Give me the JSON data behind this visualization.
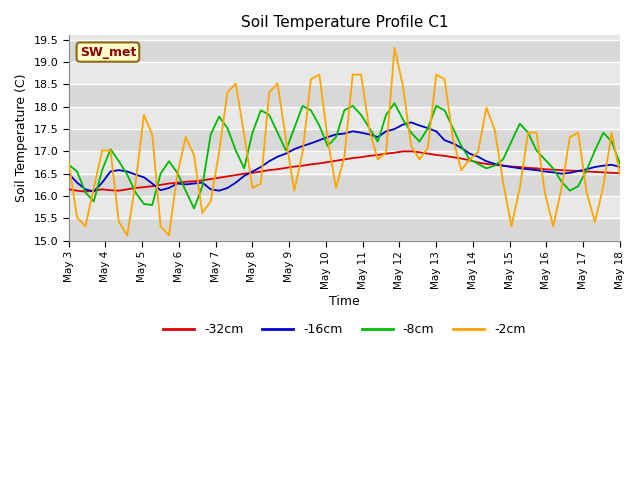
{
  "title": "Soil Temperature Profile C1",
  "xlabel": "Time",
  "ylabel": "Soil Temperature (C)",
  "ylim": [
    15.0,
    19.6
  ],
  "annotation": "SW_met",
  "annotation_color": "#8B0000",
  "annotation_bg": "#FFFFCC",
  "legend_labels": [
    "-32cm",
    "-16cm",
    "-8cm",
    "-2cm"
  ],
  "legend_colors": [
    "#DD0000",
    "#0000CC",
    "#00BB00",
    "#FFA500"
  ],
  "x_ticks": [
    "May 3",
    "May 4",
    "May 5",
    "May 6",
    "May 7",
    "May 8",
    "May 9",
    "May 10",
    "May 11",
    "May 12",
    "May 13",
    "May 14",
    "May 15",
    "May 16",
    "May 17",
    "May 18"
  ],
  "band_colors": [
    "#D8D8D8",
    "#E8E8E8"
  ],
  "grid_color": "#FFFFFF",
  "series_32cm": [
    16.15,
    16.12,
    16.1,
    16.12,
    16.15,
    16.13,
    16.12,
    16.15,
    16.18,
    16.2,
    16.22,
    16.25,
    16.28,
    16.3,
    16.32,
    16.33,
    16.35,
    16.38,
    16.41,
    16.44,
    16.47,
    16.5,
    16.52,
    16.55,
    16.58,
    16.6,
    16.63,
    16.66,
    16.68,
    16.71,
    16.73,
    16.76,
    16.79,
    16.82,
    16.85,
    16.87,
    16.9,
    16.92,
    16.95,
    16.97,
    17.0,
    17.0,
    16.98,
    16.95,
    16.92,
    16.9,
    16.87,
    16.84,
    16.8,
    16.75,
    16.72,
    16.7,
    16.68,
    16.66,
    16.65,
    16.63,
    16.62,
    16.6,
    16.59,
    16.58,
    16.57,
    16.56,
    16.55,
    16.54,
    16.53,
    16.52,
    16.51
  ],
  "series_16cm": [
    16.5,
    16.3,
    16.15,
    16.1,
    16.3,
    16.55,
    16.58,
    16.55,
    16.48,
    16.42,
    16.28,
    16.13,
    16.18,
    16.28,
    16.26,
    16.28,
    16.3,
    16.15,
    16.12,
    16.18,
    16.3,
    16.45,
    16.55,
    16.65,
    16.78,
    16.88,
    16.95,
    17.05,
    17.12,
    17.18,
    17.25,
    17.32,
    17.38,
    17.4,
    17.45,
    17.42,
    17.38,
    17.32,
    17.45,
    17.5,
    17.6,
    17.65,
    17.58,
    17.52,
    17.45,
    17.25,
    17.18,
    17.08,
    16.95,
    16.88,
    16.78,
    16.72,
    16.68,
    16.65,
    16.62,
    16.6,
    16.58,
    16.55,
    16.53,
    16.5,
    16.52,
    16.56,
    16.6,
    16.65,
    16.68,
    16.7,
    16.65
  ],
  "series_8cm": [
    16.7,
    16.55,
    16.08,
    15.88,
    16.58,
    17.05,
    16.78,
    16.48,
    16.08,
    15.82,
    15.8,
    16.5,
    16.78,
    16.52,
    16.12,
    15.72,
    16.22,
    17.38,
    17.78,
    17.52,
    17.02,
    16.62,
    17.42,
    17.92,
    17.82,
    17.42,
    17.02,
    17.52,
    18.02,
    17.92,
    17.58,
    17.12,
    17.32,
    17.92,
    18.02,
    17.82,
    17.52,
    17.22,
    17.82,
    18.08,
    17.72,
    17.42,
    17.22,
    17.52,
    18.02,
    17.92,
    17.52,
    17.12,
    16.82,
    16.72,
    16.62,
    16.68,
    16.82,
    17.22,
    17.62,
    17.42,
    17.02,
    16.82,
    16.62,
    16.32,
    16.12,
    16.22,
    16.58,
    17.02,
    17.42,
    17.22,
    16.72
  ],
  "series_2cm": [
    16.75,
    15.52,
    15.32,
    16.18,
    17.02,
    17.02,
    15.42,
    15.12,
    16.28,
    17.82,
    17.38,
    15.32,
    15.12,
    16.48,
    17.32,
    16.92,
    15.62,
    15.88,
    16.98,
    18.32,
    18.52,
    17.38,
    16.18,
    16.28,
    18.32,
    18.52,
    17.28,
    16.12,
    16.98,
    18.62,
    18.72,
    17.28,
    16.18,
    16.88,
    18.72,
    18.72,
    17.48,
    16.82,
    16.98,
    19.32,
    18.48,
    17.12,
    16.82,
    17.08,
    18.72,
    18.62,
    17.28,
    16.58,
    16.82,
    16.98,
    17.98,
    17.48,
    16.32,
    15.32,
    16.18,
    17.42,
    17.42,
    16.08,
    15.32,
    16.18,
    17.32,
    17.42,
    16.08,
    15.42,
    16.22,
    17.42,
    16.48
  ]
}
